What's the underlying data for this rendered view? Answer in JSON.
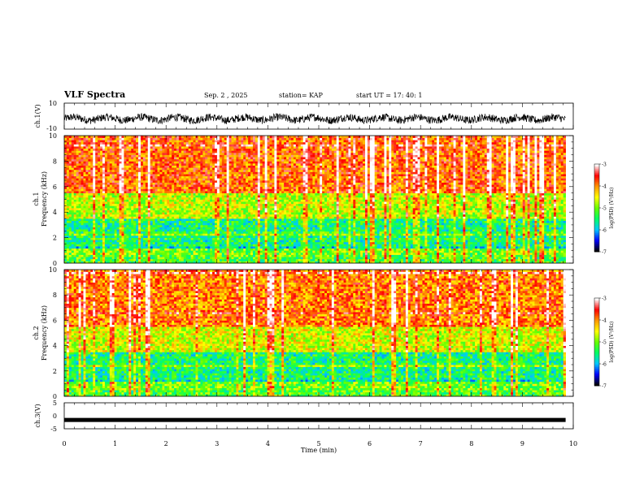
{
  "header": {
    "title": "VLF Spectra",
    "date": "Sep. 2 , 2025",
    "station": "station= KAP",
    "start": "start UT = 17: 40: 1"
  },
  "colorbar": {
    "label": "log(PSD) (V²/Hz)",
    "ticks": [
      "-3",
      "-4",
      "-5",
      "-6",
      "-7"
    ],
    "colors": [
      "#000000",
      "#0000ff",
      "#00c8ff",
      "#00ff66",
      "#66ff00",
      "#ffff00",
      "#ff9900",
      "#ff0000",
      "#ffffff"
    ]
  },
  "chart_data": [
    {
      "type": "line",
      "name": "ch1-waveform",
      "ylabel": "ch.1(V)",
      "ylim": [
        -10,
        10
      ],
      "yticks": [
        "10",
        "-10"
      ],
      "x_range_min": [
        0,
        9.85
      ],
      "description_values": "noisy waveform centred near -2 V, amplitude roughly +/-3 V"
    },
    {
      "type": "heatmap",
      "name": "ch1-spectrogram",
      "ylabel": "ch.1\nFrequency (kHz)",
      "ylim": [
        0,
        10
      ],
      "yticks": [
        "0",
        "2",
        "4",
        "6",
        "8",
        "10"
      ],
      "x_range_min": [
        0,
        9.85
      ],
      "zlim": [
        -7,
        -3
      ],
      "zlabel": "log(PSD) (V²/Hz)",
      "dominant_levels": [
        {
          "freq_khz": [
            0.5,
            1.2
          ],
          "log_psd": -5.0
        },
        {
          "freq_khz": [
            1.2,
            3.5
          ],
          "log_psd": -5.5
        },
        {
          "freq_khz": [
            3.5,
            5.5
          ],
          "log_psd": -4.7
        },
        {
          "freq_khz": [
            5.5,
            10
          ],
          "log_psd": -3.8
        }
      ]
    },
    {
      "type": "heatmap",
      "name": "ch2-spectrogram",
      "ylabel": "ch.2\nFrequency (kHz)",
      "ylim": [
        0,
        10
      ],
      "yticks": [
        "0",
        "2",
        "4",
        "6",
        "8",
        "10"
      ],
      "x_range_min": [
        0,
        9.85
      ],
      "zlim": [
        -7,
        -3
      ],
      "zlabel": "log(PSD) (V²/Hz)",
      "dominant_levels": [
        {
          "freq_khz": [
            0.5,
            1.2
          ],
          "log_psd": -5.0
        },
        {
          "freq_khz": [
            1.2,
            3.5
          ],
          "log_psd": -5.5
        },
        {
          "freq_khz": [
            3.5,
            5.5
          ],
          "log_psd": -4.6
        },
        {
          "freq_khz": [
            5.5,
            10
          ],
          "log_psd": -3.9
        }
      ]
    },
    {
      "type": "line",
      "name": "ch3-waveform",
      "ylabel": "ch.3(V)",
      "ylim": [
        -5,
        5
      ],
      "yticks": [
        "5",
        "0",
        "-5"
      ],
      "x_range_min": [
        0,
        9.85
      ],
      "constant_value": -1.6
    }
  ],
  "xaxis": {
    "label": "Time (min)",
    "range": [
      0,
      10
    ],
    "ticks": [
      "0",
      "1",
      "2",
      "3",
      "4",
      "5",
      "6",
      "7",
      "8",
      "9",
      "10"
    ]
  }
}
